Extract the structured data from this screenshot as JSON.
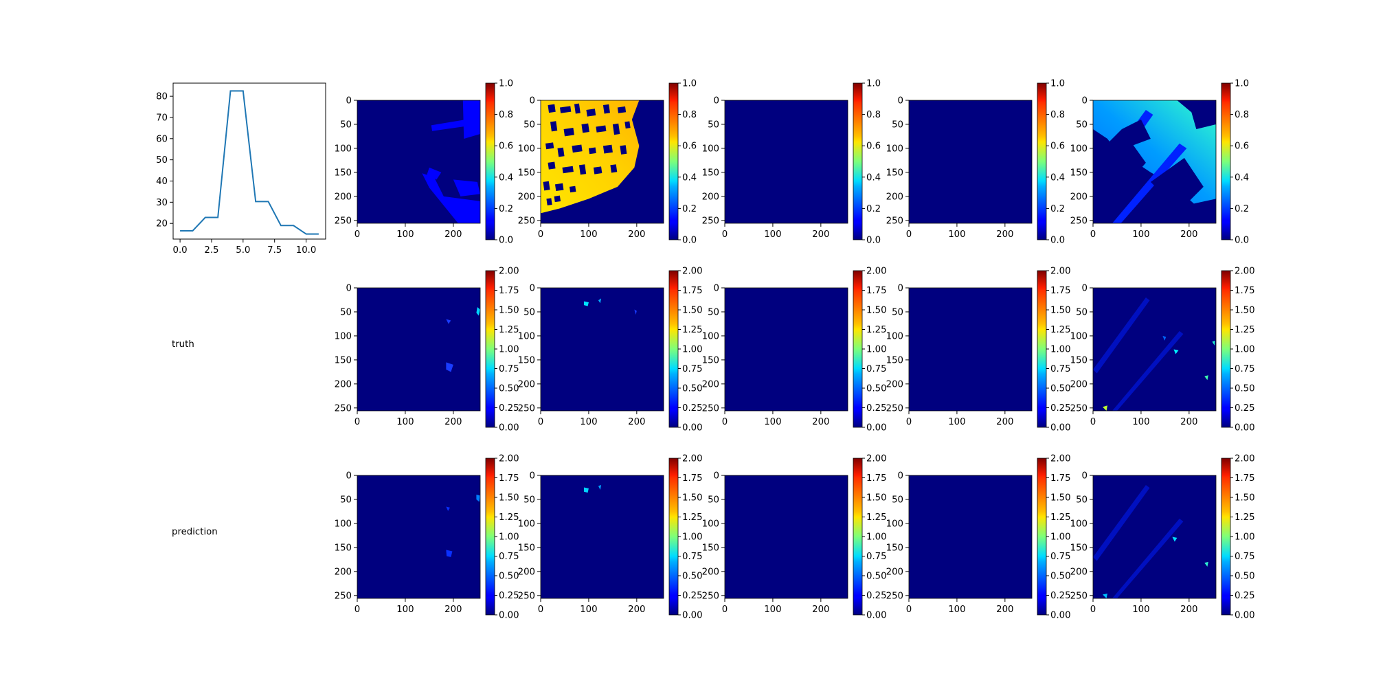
{
  "chart_data": [
    {
      "type": "line",
      "x": [
        0,
        1,
        2,
        3,
        4,
        5,
        6,
        7,
        8,
        9,
        10,
        11
      ],
      "series": [
        {
          "values": [
            16.5,
            16.5,
            22.8,
            22.8,
            82.5,
            82.5,
            30.3,
            30.3,
            19.0,
            19.0,
            15.0,
            15.0
          ]
        }
      ],
      "xlim": [
        -0.55,
        11.55
      ],
      "ylim": [
        12.6,
        86.2
      ],
      "xticks": [
        "0.0",
        "2.5",
        "5.0",
        "7.5",
        "10.0"
      ],
      "yticks": [
        "20",
        "30",
        "40",
        "50",
        "60",
        "70",
        "80"
      ],
      "color": "#1f77b4"
    },
    {
      "type": "heatmap",
      "grid": {
        "rows": 3,
        "cols": 5
      },
      "colormap": "jet",
      "image_axis": {
        "xticks": [
          "0",
          "100",
          "200"
        ],
        "yticks": [
          "0",
          "50",
          "100",
          "150",
          "200",
          "250"
        ]
      },
      "rows": [
        {
          "label": "",
          "colorbar_ticks": [
            "0.0",
            "0.2",
            "0.4",
            "0.6",
            "0.8",
            "1.0"
          ],
          "vmin": 0,
          "vmax": 1
        },
        {
          "label": "truth",
          "colorbar_ticks": [
            "0.00",
            "0.25",
            "0.50",
            "0.75",
            "1.00",
            "1.25",
            "1.50",
            "1.75",
            "2.00"
          ],
          "vmin": 0,
          "vmax": 2
        },
        {
          "label": "prediction",
          "colorbar_ticks": [
            "0.00",
            "0.25",
            "0.50",
            "0.75",
            "1.00",
            "1.25",
            "1.50",
            "1.75",
            "2.00"
          ],
          "vmin": 0,
          "vmax": 2
        }
      ],
      "background_color": "#00007f"
    }
  ]
}
